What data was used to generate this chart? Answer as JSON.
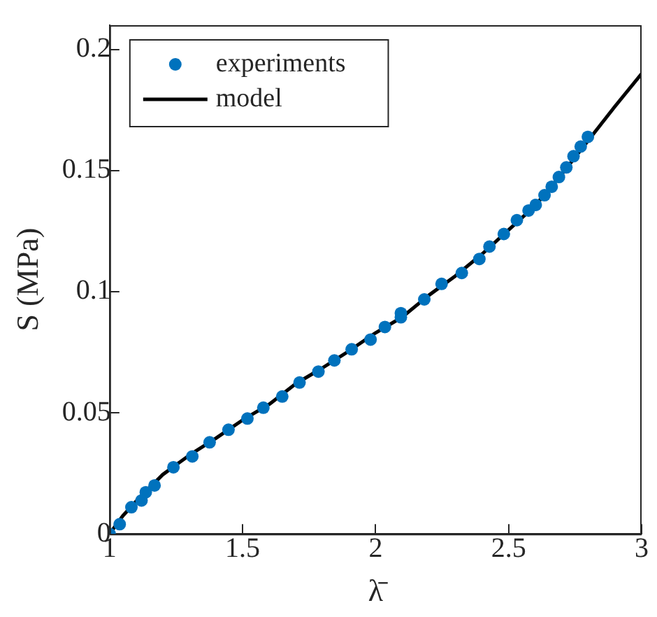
{
  "chart_data": {
    "type": "scatter",
    "xlabel": "λ̄",
    "ylabel": "S (MPa)",
    "xlim": [
      1,
      3
    ],
    "ylim": [
      0,
      0.21
    ],
    "xticks": [
      1,
      1.5,
      2,
      2.5,
      3
    ],
    "yticks": [
      0,
      0.05,
      0.1,
      0.15,
      0.2
    ],
    "grid": false,
    "legend": "top left",
    "marker": "circle",
    "series": [
      {
        "name": "experiments",
        "color": "#0072bd",
        "x": [
          1,
          1.038,
          1.082,
          1.12,
          1.136,
          1.169,
          1.24,
          1.311,
          1.376,
          1.447,
          1.518,
          1.578,
          1.649,
          1.714,
          1.785,
          1.845,
          1.91,
          1.981,
          2.035,
          2.095,
          2.095,
          2.183,
          2.248,
          2.324,
          2.39,
          2.428,
          2.482,
          2.531,
          2.575,
          2.602,
          2.635,
          2.662,
          2.689,
          2.717,
          2.744,
          2.771,
          2.798
        ],
        "values": [
          0,
          0.004,
          0.011,
          0.0138,
          0.0172,
          0.02,
          0.0275,
          0.032,
          0.0378,
          0.043,
          0.0476,
          0.0521,
          0.0567,
          0.0625,
          0.067,
          0.0716,
          0.0762,
          0.0802,
          0.0854,
          0.0911,
          0.0894,
          0.0968,
          0.1032,
          0.1077,
          0.1135,
          0.1186,
          0.1238,
          0.1295,
          0.1335,
          0.1358,
          0.1398,
          0.1433,
          0.1473,
          0.1513,
          0.1559,
          0.1599,
          0.1639
        ]
      },
      {
        "name": "model",
        "type": "line",
        "color": "#000000",
        "marker": "none",
        "line_style": "solid",
        "x": [
          1,
          1.05,
          1.1,
          1.2,
          1.3,
          1.4,
          1.5,
          1.6,
          1.7,
          1.8,
          1.9,
          2,
          2.1,
          2.2,
          2.3,
          2.4,
          2.5,
          2.6,
          2.7,
          2.8,
          2.9,
          3
        ],
        "values": [
          0,
          0.0075,
          0.0135,
          0.0245,
          0.0325,
          0.0395,
          0.047,
          0.0535,
          0.062,
          0.0685,
          0.0755,
          0.083,
          0.0895,
          0.0985,
          0.1065,
          0.1155,
          0.1255,
          0.1355,
          0.1485,
          0.1625,
          0.1765,
          0.19
        ]
      }
    ]
  }
}
